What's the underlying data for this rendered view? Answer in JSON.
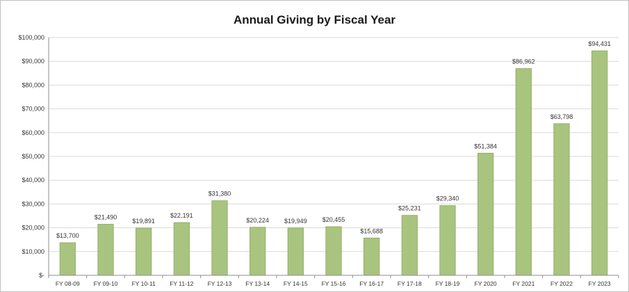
{
  "chart_data": {
    "type": "bar",
    "title": "Annual Giving by Fiscal Year",
    "xlabel": "",
    "ylabel": "",
    "ylim": [
      0,
      100000
    ],
    "y_tick_values": [
      0,
      10000,
      20000,
      30000,
      40000,
      50000,
      60000,
      70000,
      80000,
      90000,
      100000
    ],
    "y_tick_labels": [
      "$-",
      "$10,000",
      "$20,000",
      "$30,000",
      "$40,000",
      "$50,000",
      "$60,000",
      "$70,000",
      "$80,000",
      "$90,000",
      "$100,000"
    ],
    "grid": true,
    "legend": "none",
    "bar_color": "#a9c47f",
    "bar_edge_color": "#8aa85e",
    "categories": [
      "FY 08-09",
      "FY 09-10",
      "FY 10-11",
      "FY 11-12",
      "FY 12-13",
      "FY 13-14",
      "FY 14-15",
      "FY 15-16",
      "FY 16-17",
      "FY 17-18",
      "FY 18-19",
      "FY 2020",
      "FY 2021",
      "FY 2022",
      "FY 2023"
    ],
    "values": [
      13700,
      21490,
      19891,
      22191,
      31380,
      20224,
      19949,
      20455,
      15688,
      25231,
      29340,
      51384,
      86962,
      63798,
      94431
    ],
    "data_labels": [
      "$13,700",
      "$21,490",
      "$19,891",
      "$22,191",
      "$31,380",
      "$20,224",
      "$19,949",
      "$20,455",
      "$15,688",
      "$25,231",
      "$29,340",
      "$51,384",
      "$86,962",
      "$63,798",
      "$94,431"
    ]
  }
}
